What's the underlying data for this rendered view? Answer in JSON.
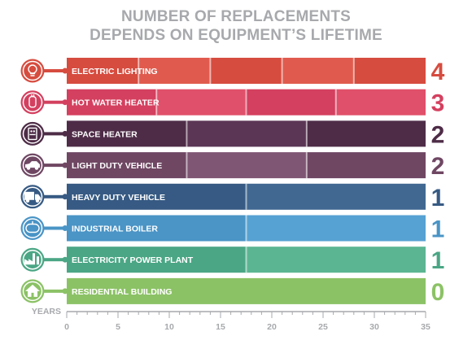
{
  "title": [
    "NUMBER OF REPLACEMENTS",
    "DEPENDS ON EQUIPMENT’S LIFETIME"
  ],
  "axis": {
    "label": "YEARS",
    "ticks": [
      "0",
      "5",
      "10",
      "15",
      "20",
      "25",
      "30",
      "35"
    ]
  },
  "chart_data": {
    "type": "bar",
    "title": "NUMBER OF REPLACEMENTS DEPENDS ON EQUIPMENT’S LIFETIME",
    "xlabel": "YEARS",
    "xlim": [
      0,
      35
    ],
    "xticks": [
      0,
      5,
      10,
      15,
      20,
      25,
      30,
      35
    ],
    "grid": false,
    "categories": [
      "ELECTRIC LIGHTING",
      "HOT WATER HEATER",
      "SPACE HEATER",
      "LIGHT DUTY VEHICLE",
      "HEAVY DUTY VEHICLE",
      "INDUSTRIAL BOILER",
      "ELECTRICITY POWER PLANT",
      "RESIDENTIAL BUILDING"
    ],
    "values": [
      4,
      3,
      2,
      2,
      1,
      1,
      1,
      0
    ],
    "lifetimes": [
      7,
      8.75,
      11.7,
      11.7,
      17.5,
      17.5,
      17.5,
      35
    ],
    "icons": [
      "lightbulb-icon",
      "water-heater-icon",
      "space-heater-icon",
      "car-icon",
      "truck-icon",
      "boiler-icon",
      "power-plant-icon",
      "house-icon"
    ],
    "colors": [
      "#d64c3f",
      "#d4405f",
      "#4e2c47",
      "#6f4763",
      "#365a83",
      "#4a94c6",
      "#4ba685",
      "#8cc266"
    ],
    "colors_light": [
      "#e05b4e",
      "#e0506a",
      "#5b3655",
      "#805675",
      "#416891",
      "#56a2d3",
      "#5bb592",
      "#8cc266"
    ]
  }
}
